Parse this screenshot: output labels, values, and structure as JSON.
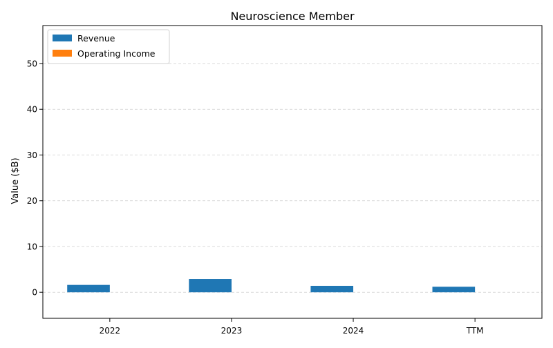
{
  "chart_data": {
    "type": "bar",
    "title": "Neuroscience Member",
    "xlabel": "",
    "ylabel": "Value ($B)",
    "categories": [
      "2022",
      "2023",
      "2024",
      "TTM"
    ],
    "series": [
      {
        "name": "Revenue",
        "color": "#1f77b4",
        "values": [
          1.6,
          2.9,
          1.4,
          1.2
        ]
      },
      {
        "name": "Operating Income",
        "color": "#ff7f0e",
        "values": [
          0,
          0,
          0,
          0
        ]
      }
    ],
    "ylim": [
      -5.7,
      58.3
    ],
    "yticks": [
      0,
      10,
      20,
      30,
      40,
      50
    ],
    "grid": true,
    "legend_position": "top-left"
  }
}
